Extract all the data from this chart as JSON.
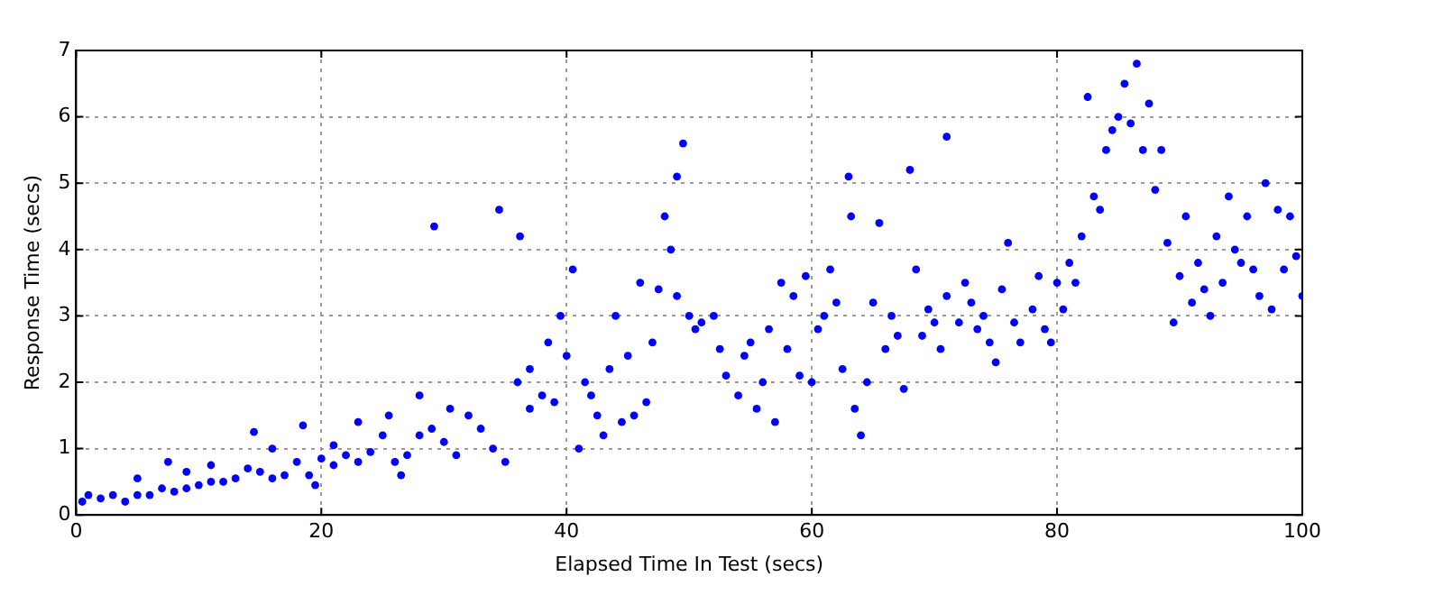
{
  "chart_data": {
    "type": "scatter",
    "xlabel": "Elapsed Time In Test (secs)",
    "ylabel": "Response Time (secs)",
    "xlim": [
      0,
      100
    ],
    "ylim": [
      0,
      7
    ],
    "xticks": [
      0,
      20,
      40,
      60,
      80,
      100
    ],
    "yticks": [
      0,
      1,
      2,
      3,
      4,
      5,
      6,
      7
    ],
    "grid": true,
    "legend": false,
    "marker": "circle",
    "series": [
      {
        "color": "#0000ff",
        "x": [
          0.5,
          1,
          2,
          3,
          4,
          5,
          5,
          6,
          7,
          7.5,
          8,
          9,
          9,
          10,
          11,
          11,
          12,
          13,
          14,
          14.5,
          15,
          16,
          16,
          17,
          18,
          18.5,
          19,
          19.5,
          20,
          21,
          21,
          22,
          23,
          23,
          24,
          25,
          25.5,
          26,
          26.5,
          27,
          28,
          28,
          29,
          29.2,
          30,
          30.5,
          31,
          32,
          33,
          34,
          34.5,
          35,
          36,
          36.2,
          37,
          37,
          38,
          38.5,
          39,
          39.5,
          40,
          40.5,
          41,
          41.5,
          42,
          42.5,
          43,
          43.5,
          44,
          44.5,
          45,
          45.5,
          46,
          46.5,
          47,
          47.5,
          48,
          48.5,
          49,
          49,
          49.5,
          50,
          50.5,
          51,
          52,
          52.5,
          53,
          54,
          54.5,
          55,
          55.5,
          56,
          56.5,
          57,
          57.5,
          58,
          58.5,
          59,
          59.5,
          60,
          60.5,
          61,
          61.5,
          62,
          62.5,
          63,
          63.2,
          63.5,
          64,
          64.5,
          65,
          65.5,
          66,
          66.5,
          67,
          67.5,
          68,
          68.5,
          69,
          69.5,
          70,
          70.5,
          71,
          71,
          72,
          72.5,
          73,
          73.5,
          74,
          74.5,
          75,
          75.5,
          76,
          76.5,
          77,
          78,
          78.5,
          79,
          79.5,
          80,
          80.5,
          81,
          81.5,
          82,
          82.5,
          83,
          83.5,
          84,
          84.5,
          85,
          85.5,
          86,
          86.5,
          87,
          87.5,
          88,
          88.5,
          89,
          89.5,
          90,
          90.5,
          91,
          91.5,
          92,
          92.5,
          93,
          93.5,
          94,
          94.5,
          95,
          95.5,
          96,
          96.5,
          97,
          97.5,
          98,
          98.5,
          99,
          99.5,
          100
        ],
        "values": [
          0.2,
          0.3,
          0.25,
          0.3,
          0.2,
          0.3,
          0.55,
          0.3,
          0.4,
          0.8,
          0.35,
          0.4,
          0.65,
          0.45,
          0.5,
          0.75,
          0.5,
          0.55,
          0.7,
          1.25,
          0.65,
          0.55,
          1.0,
          0.6,
          0.8,
          1.35,
          0.6,
          0.45,
          0.85,
          0.75,
          1.05,
          0.9,
          0.8,
          1.4,
          0.95,
          1.2,
          1.5,
          0.8,
          0.6,
          0.9,
          1.2,
          1.8,
          1.3,
          4.35,
          1.1,
          1.6,
          0.9,
          1.5,
          1.3,
          1.0,
          4.6,
          0.8,
          2.0,
          4.2,
          2.2,
          1.6,
          1.8,
          2.6,
          1.7,
          3.0,
          2.4,
          3.7,
          1.0,
          2.0,
          1.8,
          1.5,
          1.2,
          2.2,
          3.0,
          1.4,
          2.4,
          1.5,
          3.5,
          1.7,
          2.6,
          3.4,
          4.5,
          4.0,
          5.1,
          3.3,
          5.6,
          3.0,
          2.8,
          2.9,
          3.0,
          2.5,
          2.1,
          1.8,
          2.4,
          2.6,
          1.6,
          2.0,
          2.8,
          1.4,
          3.5,
          2.5,
          3.3,
          2.1,
          3.6,
          2.0,
          2.8,
          3.0,
          3.7,
          3.2,
          2.2,
          5.1,
          4.5,
          1.6,
          1.2,
          2.0,
          3.2,
          4.4,
          2.5,
          3.0,
          2.7,
          1.9,
          5.2,
          3.7,
          2.7,
          3.1,
          2.9,
          2.5,
          5.7,
          3.3,
          2.9,
          3.5,
          3.2,
          2.8,
          3.0,
          2.6,
          2.3,
          3.4,
          4.1,
          2.9,
          2.6,
          3.1,
          3.6,
          2.8,
          2.6,
          3.5,
          3.1,
          3.8,
          3.5,
          4.2,
          6.3,
          4.8,
          4.6,
          5.5,
          5.8,
          6.0,
          6.5,
          5.9,
          6.8,
          5.5,
          6.2,
          4.9,
          5.5,
          4.1,
          2.9,
          3.6,
          4.5,
          3.2,
          3.8,
          3.4,
          3.0,
          4.2,
          3.5,
          4.8,
          4.0,
          3.8,
          4.5,
          3.7,
          3.3,
          5.0,
          3.1,
          4.6,
          3.7,
          4.5,
          3.9,
          3.3
        ]
      }
    ]
  }
}
